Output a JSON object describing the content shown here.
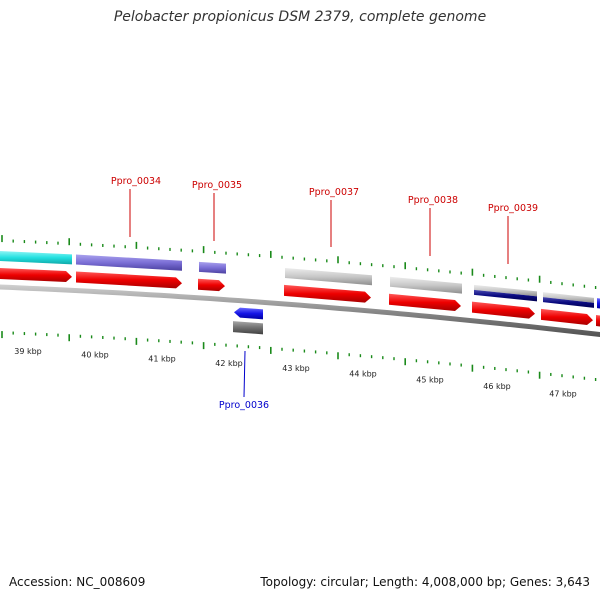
{
  "title": "Pelobacter propionicus DSM 2379, complete genome",
  "footer": {
    "accession": "Accession: NC_008609",
    "summary": "Topology: circular; Length: 4,008,000 bp; Genes: 3,643"
  },
  "colors": {
    "background": "#ffffff",
    "backbone": "#8a8a8a",
    "tick": "#1a8a1a",
    "label_forward": "#cc0000",
    "label_reverse": "#0000cc",
    "cds_red": "#ee0000",
    "cyan": "#22e0e0",
    "violet": "#7b6fd6",
    "light_gray": "#c8c8c8",
    "navy": "#0a0a80",
    "blue": "#1414e6",
    "dark_gray": "#707070"
  },
  "scale_labels": [
    "39 kbp",
    "40 kbp",
    "41 kbp",
    "42 kbp",
    "43 kbp",
    "44 kbp",
    "45 kbp",
    "46 kbp",
    "47 kbp"
  ],
  "genes": [
    {
      "id": "Ppro_0034",
      "strand": "+"
    },
    {
      "id": "Ppro_0035",
      "strand": "+"
    },
    {
      "id": "Ppro_0036",
      "strand": "-"
    },
    {
      "id": "Ppro_0037",
      "strand": "+"
    },
    {
      "id": "Ppro_0038",
      "strand": "+"
    },
    {
      "id": "Ppro_0039",
      "strand": "+"
    }
  ]
}
